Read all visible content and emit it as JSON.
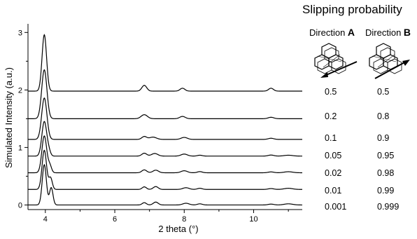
{
  "chart_data": {
    "type": "line",
    "xlabel": "2 theta (°)",
    "ylabel": "Simulated Intensity (a.u.)",
    "xlim": [
      3.5,
      11.4
    ],
    "ylim": [
      -0.08,
      3.15
    ],
    "x_ticks": [
      4,
      6,
      8,
      10
    ],
    "y_ticks": [
      0,
      1,
      2,
      3
    ],
    "grid": false,
    "series": [
      {
        "offset": 0.0,
        "peaks": [
          [
            3.97,
            0.7,
            0.06
          ],
          [
            4.17,
            0.3,
            0.05
          ],
          [
            6.85,
            0.04,
            0.06
          ],
          [
            7.18,
            0.05,
            0.07
          ],
          [
            8.05,
            0.03,
            0.09
          ],
          [
            8.45,
            0.02,
            0.07
          ],
          [
            10.5,
            0.015,
            0.08
          ],
          [
            11.0,
            0.02,
            0.12
          ]
        ]
      },
      {
        "offset": 0.27,
        "peaks": [
          [
            3.97,
            0.68,
            0.065
          ],
          [
            4.15,
            0.2,
            0.05
          ],
          [
            6.85,
            0.045,
            0.06
          ],
          [
            7.18,
            0.05,
            0.07
          ],
          [
            8.05,
            0.03,
            0.09
          ],
          [
            8.45,
            0.02,
            0.07
          ],
          [
            10.5,
            0.015,
            0.08
          ],
          [
            11.0,
            0.02,
            0.12
          ]
        ]
      },
      {
        "offset": 0.56,
        "peaks": [
          [
            3.97,
            0.64,
            0.07
          ],
          [
            4.13,
            0.12,
            0.05
          ],
          [
            6.85,
            0.05,
            0.07
          ],
          [
            7.18,
            0.045,
            0.08
          ],
          [
            8.0,
            0.035,
            0.09
          ],
          [
            8.45,
            0.02,
            0.07
          ],
          [
            10.5,
            0.015,
            0.08
          ],
          [
            11.0,
            0.018,
            0.12
          ]
        ]
      },
      {
        "offset": 0.85,
        "peaks": [
          [
            3.97,
            0.6,
            0.07
          ],
          [
            4.1,
            0.08,
            0.05
          ],
          [
            6.85,
            0.05,
            0.07
          ],
          [
            7.15,
            0.045,
            0.09
          ],
          [
            8.0,
            0.035,
            0.09
          ],
          [
            8.45,
            0.015,
            0.07
          ],
          [
            10.5,
            0.018,
            0.08
          ],
          [
            11.0,
            0.015,
            0.12
          ]
        ]
      },
      {
        "offset": 1.14,
        "peaks": [
          [
            3.97,
            0.72,
            0.075
          ],
          [
            6.85,
            0.05,
            0.07
          ],
          [
            7.1,
            0.04,
            0.1
          ],
          [
            8.0,
            0.035,
            0.09
          ],
          [
            10.5,
            0.02,
            0.08
          ]
        ]
      },
      {
        "offset": 1.5,
        "peaks": [
          [
            3.97,
            0.85,
            0.075
          ],
          [
            6.85,
            0.07,
            0.09
          ],
          [
            7.95,
            0.04,
            0.08
          ],
          [
            10.5,
            0.025,
            0.08
          ]
        ]
      },
      {
        "offset": 1.98,
        "peaks": [
          [
            3.97,
            0.98,
            0.065
          ],
          [
            6.85,
            0.1,
            0.07
          ],
          [
            7.95,
            0.05,
            0.07
          ],
          [
            10.5,
            0.05,
            0.07
          ]
        ]
      }
    ]
  },
  "panel": {
    "title": "Slipping probability",
    "direction_a_prefix": "Direction ",
    "direction_a_letter": "A",
    "direction_b_prefix": "Direction ",
    "direction_b_letter": "B",
    "rows": [
      {
        "a": "0.5",
        "b": "0.5"
      },
      {
        "a": "0.2",
        "b": "0.8"
      },
      {
        "a": "0.1",
        "b": "0.9"
      },
      {
        "a": "0.05",
        "b": "0.95"
      },
      {
        "a": "0.02",
        "b": "0.98"
      },
      {
        "a": "0.01",
        "b": "0.99"
      },
      {
        "a": "0.001",
        "b": "0.999"
      }
    ]
  }
}
